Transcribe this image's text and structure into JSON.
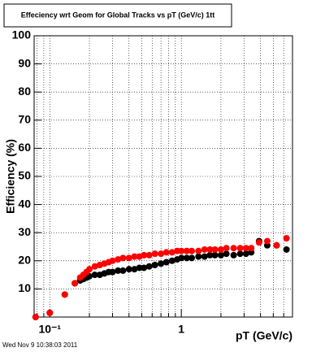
{
  "chart_data": {
    "type": "scatter",
    "title": "Effeciency wrt Geom for Global Tracks vs pT (GeV/c) 1tt",
    "x_label": "pT (GeV/c)",
    "y_label": "Efficiency (%)",
    "footer": "Wed Nov  9 10:38:03 2011",
    "log_x": true,
    "grid": true,
    "xlim": [
      0.076,
      7
    ],
    "ylim": [
      0,
      100
    ],
    "xticks": [
      {
        "value": 0.1,
        "label": "10⁻¹"
      },
      1
    ],
    "xminorticks": [
      0.08,
      0.09,
      0.2,
      0.3,
      0.4,
      0.5,
      0.6,
      0.7,
      0.8,
      0.9,
      2,
      3,
      4,
      5,
      6,
      7
    ],
    "yticks": [
      10,
      20,
      30,
      40,
      50,
      60,
      70,
      80,
      90,
      100
    ],
    "x": [
      0.078,
      0.1,
      0.13,
      0.155,
      0.17,
      0.18,
      0.19,
      0.2,
      0.22,
      0.24,
      0.26,
      0.28,
      0.3,
      0.33,
      0.36,
      0.4,
      0.44,
      0.48,
      0.52,
      0.57,
      0.63,
      0.7,
      0.77,
      0.85,
      0.93,
      1.0,
      1.1,
      1.2,
      1.35,
      1.5,
      1.65,
      1.8,
      2.0,
      2.2,
      2.5,
      2.8,
      3.1,
      3.4,
      3.9,
      4.5,
      5.3,
      6.3
    ],
    "series": [
      {
        "color": "#000000",
        "values": [
          0,
          1.5,
          8,
          12,
          13,
          13.5,
          14,
          14.5,
          15,
          15,
          15.5,
          16,
          16,
          16.5,
          16.5,
          17,
          17,
          17.5,
          17.5,
          18,
          18.5,
          19,
          19.5,
          20,
          20.5,
          21,
          21,
          21,
          21.5,
          21.5,
          22,
          22,
          22,
          22.5,
          22,
          22.5,
          22.5,
          23,
          27,
          25.5,
          25.5,
          24
        ]
      },
      {
        "color": "#ff0000",
        "values": [
          0,
          1.5,
          8,
          12,
          14,
          15,
          16,
          17,
          18,
          18.5,
          19,
          19.5,
          20,
          20.5,
          21,
          21,
          21.5,
          21.5,
          22,
          22,
          22.5,
          22.5,
          23,
          23,
          23.5,
          23.5,
          23.5,
          23.5,
          23.5,
          24,
          24,
          24,
          24,
          24.5,
          24.5,
          24.5,
          24.5,
          24.5,
          26.5,
          27,
          25.5,
          28
        ]
      }
    ]
  }
}
